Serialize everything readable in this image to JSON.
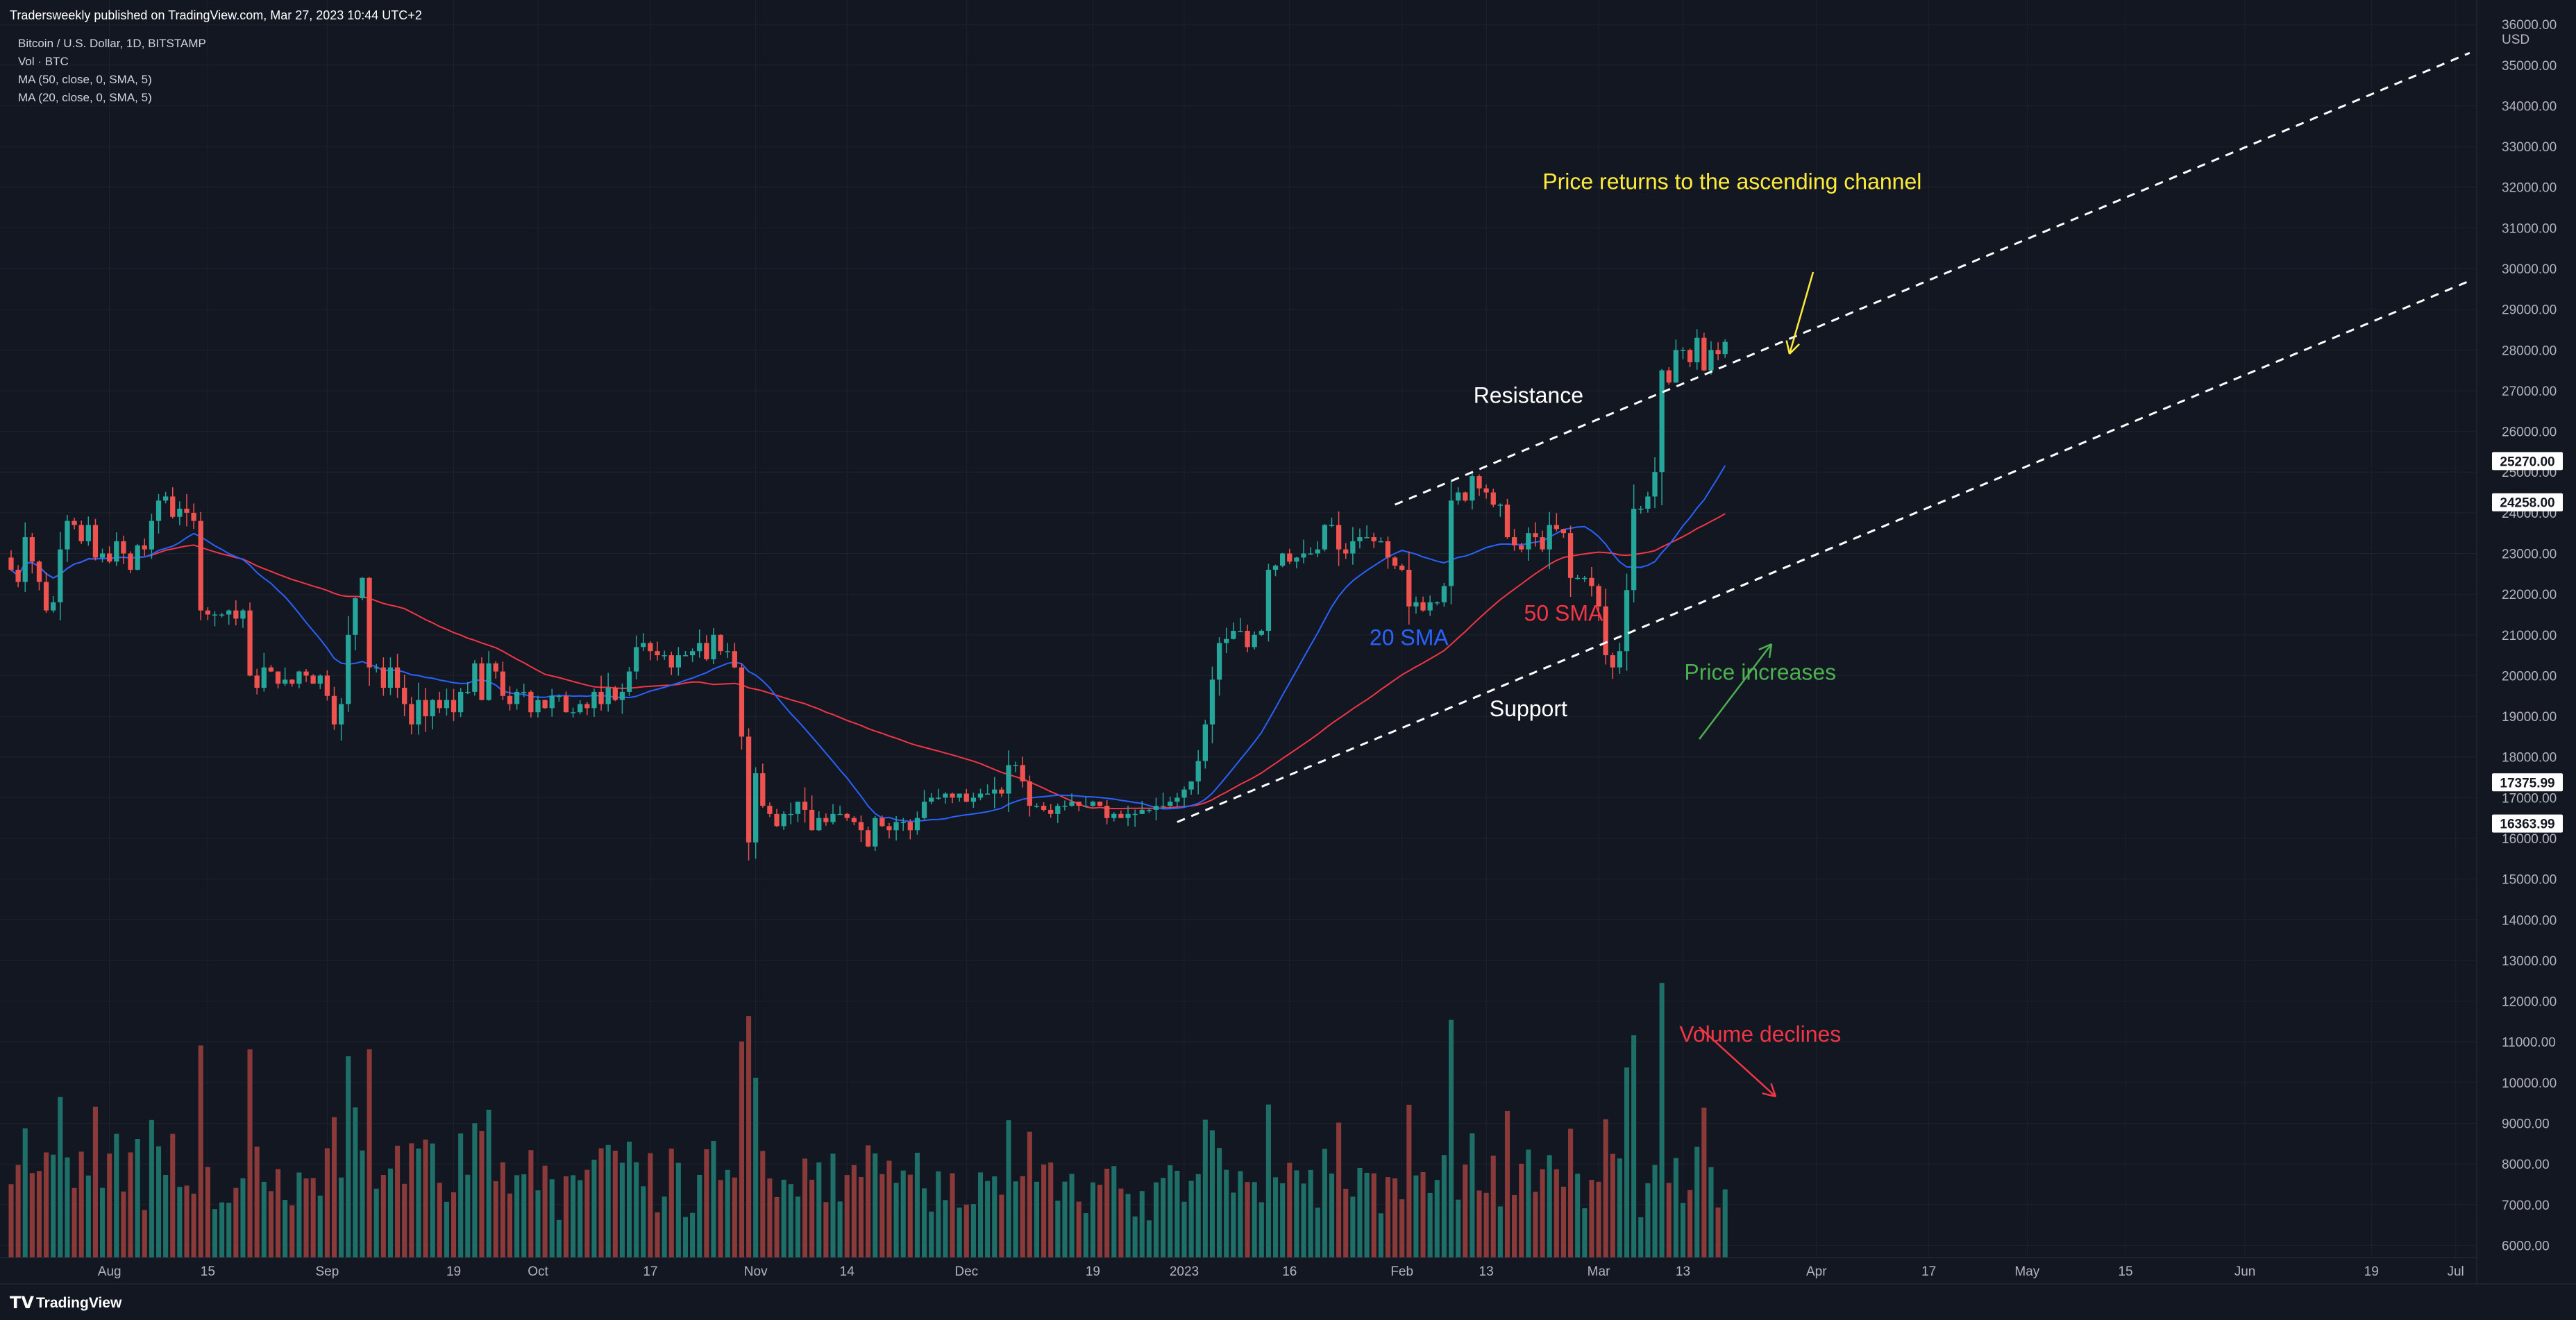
{
  "header": {
    "published": "Tradersweekly published on TradingView.com, Mar 27, 2023 10:44 UTC+2",
    "symbol": "Bitcoin / U.S. Dollar, 1D, BITSTAMP",
    "indicators": [
      "Vol · BTC",
      "MA (50, close, 0, SMA, 5)",
      "MA (20, close, 0, SMA, 5)"
    ]
  },
  "footer": {
    "logo_text": "TradingView"
  },
  "colors": {
    "background": "#131722",
    "grid": "#1e222d",
    "up": "#26a69a",
    "down": "#ef5350",
    "vol_up": "#1f6f69",
    "vol_down": "#8b3a3a",
    "sma20": "#2962ff",
    "sma50": "#f23645",
    "annot_yellow": "#ffeb3b",
    "annot_green": "#4caf50",
    "annot_red": "#f23645",
    "white": "#ffffff"
  },
  "chart_data": {
    "type": "candlestick",
    "currency_label": "USD",
    "y_ticks": [
      "6000.00",
      "7000.00",
      "8000.00",
      "9000.00",
      "10000.00",
      "11000.00",
      "12000.00",
      "13000.00",
      "14000.00",
      "15000.00",
      "16000.00",
      "17000.00",
      "18000.00",
      "19000.00",
      "20000.00",
      "21000.00",
      "22000.00",
      "23000.00",
      "24000.00",
      "25000.00",
      "26000.00",
      "27000.00",
      "28000.00",
      "29000.00",
      "30000.00",
      "31000.00",
      "32000.00",
      "33000.00",
      "34000.00",
      "35000.00",
      "36000.00"
    ],
    "ylim": [
      5700,
      36600
    ],
    "x_range": [
      "2022-07-18",
      "2023-07-04"
    ],
    "x_ticks": [
      {
        "date": "2022-08-01",
        "label": "Aug"
      },
      {
        "date": "2022-08-15",
        "label": "15"
      },
      {
        "date": "2022-09-01",
        "label": "Sep"
      },
      {
        "date": "2022-09-19",
        "label": "19"
      },
      {
        "date": "2022-10-01",
        "label": "Oct"
      },
      {
        "date": "2022-10-17",
        "label": "17"
      },
      {
        "date": "2022-11-01",
        "label": "Nov"
      },
      {
        "date": "2022-11-14",
        "label": "14"
      },
      {
        "date": "2022-12-01",
        "label": "Dec"
      },
      {
        "date": "2022-12-19",
        "label": "19"
      },
      {
        "date": "2023-01-01",
        "label": "2023"
      },
      {
        "date": "2023-01-16",
        "label": "16"
      },
      {
        "date": "2023-02-01",
        "label": "Feb"
      },
      {
        "date": "2023-02-13",
        "label": "13"
      },
      {
        "date": "2023-03-01",
        "label": "Mar"
      },
      {
        "date": "2023-03-13",
        "label": "13"
      },
      {
        "date": "2023-04-01",
        "label": "Apr"
      },
      {
        "date": "2023-04-17",
        "label": "17"
      },
      {
        "date": "2023-05-01",
        "label": "May"
      },
      {
        "date": "2023-05-15",
        "label": "15"
      },
      {
        "date": "2023-06-01",
        "label": "Jun"
      },
      {
        "date": "2023-06-19",
        "label": "19"
      },
      {
        "date": "2023-07-01",
        "label": "Jul"
      }
    ],
    "price_tags": [
      {
        "label": "25270.00",
        "price": 25270
      },
      {
        "label": "24258.00",
        "price": 24258
      },
      {
        "label": "17375.99",
        "price": 17376
      },
      {
        "label": "16363.99",
        "price": 16364
      }
    ],
    "candles": {
      "start_date": "2022-07-18",
      "close": [
        22600,
        22300,
        23400,
        22800,
        22300,
        21600,
        21800,
        23100,
        23800,
        23700,
        23300,
        23700,
        22900,
        23000,
        22800,
        23300,
        23000,
        22600,
        23200,
        23100,
        23800,
        24300,
        24400,
        23900,
        24100,
        24000,
        23800,
        21600,
        21500,
        21500,
        21500,
        21600,
        21400,
        21600,
        20000,
        19700,
        20200,
        20100,
        19800,
        19900,
        19800,
        20100,
        20000,
        19800,
        20000,
        19500,
        18800,
        19300,
        21000,
        21900,
        22400,
        20200,
        20200,
        19700,
        20200,
        19700,
        19300,
        18800,
        19400,
        19000,
        19400,
        19200,
        19400,
        19100,
        19600,
        19600,
        20300,
        19400,
        20300,
        20100,
        19500,
        19300,
        19600,
        19600,
        19100,
        19400,
        19200,
        19500,
        19500,
        19100,
        19100,
        19300,
        19200,
        19600,
        19300,
        19700,
        19400,
        19600,
        20100,
        20700,
        20800,
        20600,
        20500,
        20500,
        20200,
        20500,
        20500,
        20600,
        20800,
        20400,
        21000,
        20600,
        20600,
        20200,
        18500,
        15900,
        17600,
        16800,
        16600,
        16300,
        16600,
        16600,
        16900,
        16700,
        16200,
        16500,
        16400,
        16600,
        16600,
        16500,
        16400,
        16200,
        15800,
        16500,
        16300,
        16200,
        16400,
        16400,
        16200,
        16500,
        16900,
        17000,
        17000,
        17100,
        17000,
        17100,
        16900,
        17000,
        17100,
        17100,
        17200,
        17100,
        17800,
        17800,
        17400,
        16800,
        16800,
        16700,
        16600,
        16800,
        16800,
        16900,
        16800,
        16800,
        16900,
        16800,
        16500,
        16600,
        16500,
        16600,
        16600,
        16700,
        16700,
        16800,
        16800,
        16900,
        17000,
        17200,
        17400,
        17900,
        18800,
        19900,
        20800,
        20900,
        21100,
        21100,
        20700,
        21000,
        21100,
        22600,
        22700,
        23000,
        22800,
        22900,
        23000,
        23000,
        23100,
        23700,
        23700,
        23100,
        23000,
        23300,
        23400,
        23400,
        23300,
        23300,
        22900,
        22700,
        22600,
        21700,
        21800,
        21600,
        21800,
        21800,
        22200,
        24300,
        24500,
        24300,
        24900,
        24600,
        24500,
        24200,
        24200,
        23400,
        23200,
        23100,
        23500,
        23400,
        23100,
        23700,
        23600,
        23500,
        22400,
        22400,
        22400,
        22200,
        21700,
        20500,
        20200,
        20600,
        22100,
        24100,
        24100,
        24400,
        25000,
        27500,
        27200,
        28000,
        28000,
        27700,
        28300,
        27500,
        28000,
        27900,
        28200
      ]
    },
    "volume_units_note": "",
    "annotations": [
      {
        "label": "Price returns to the ascending channel",
        "date": "2023-03-20",
        "price": 31950,
        "color": "yellow"
      },
      {
        "label": "Resistance",
        "date": "2023-02-19",
        "price": 26700,
        "color": "white"
      },
      {
        "label": "Support",
        "date": "2023-02-19",
        "price": 19000,
        "color": "white"
      },
      {
        "label": "20 SMA",
        "date": "2023-02-02",
        "price": 20750,
        "color": "blue"
      },
      {
        "label": "50 SMA",
        "date": "2023-02-24",
        "price": 21350,
        "color": "red"
      },
      {
        "label": "Price increases",
        "date": "2023-03-24",
        "price": 19900,
        "color": "green"
      },
      {
        "label": "Volume declines",
        "date": "2023-03-24",
        "price": 11000,
        "color": "red"
      }
    ],
    "trendlines": [
      {
        "from": {
          "date": "2023-01-31",
          "price": 24200
        },
        "to": {
          "date": "2023-07-03",
          "price": 35300
        }
      },
      {
        "from": {
          "date": "2022-12-31",
          "price": 16400
        },
        "to": {
          "date": "2023-07-03",
          "price": 29700
        }
      }
    ]
  }
}
